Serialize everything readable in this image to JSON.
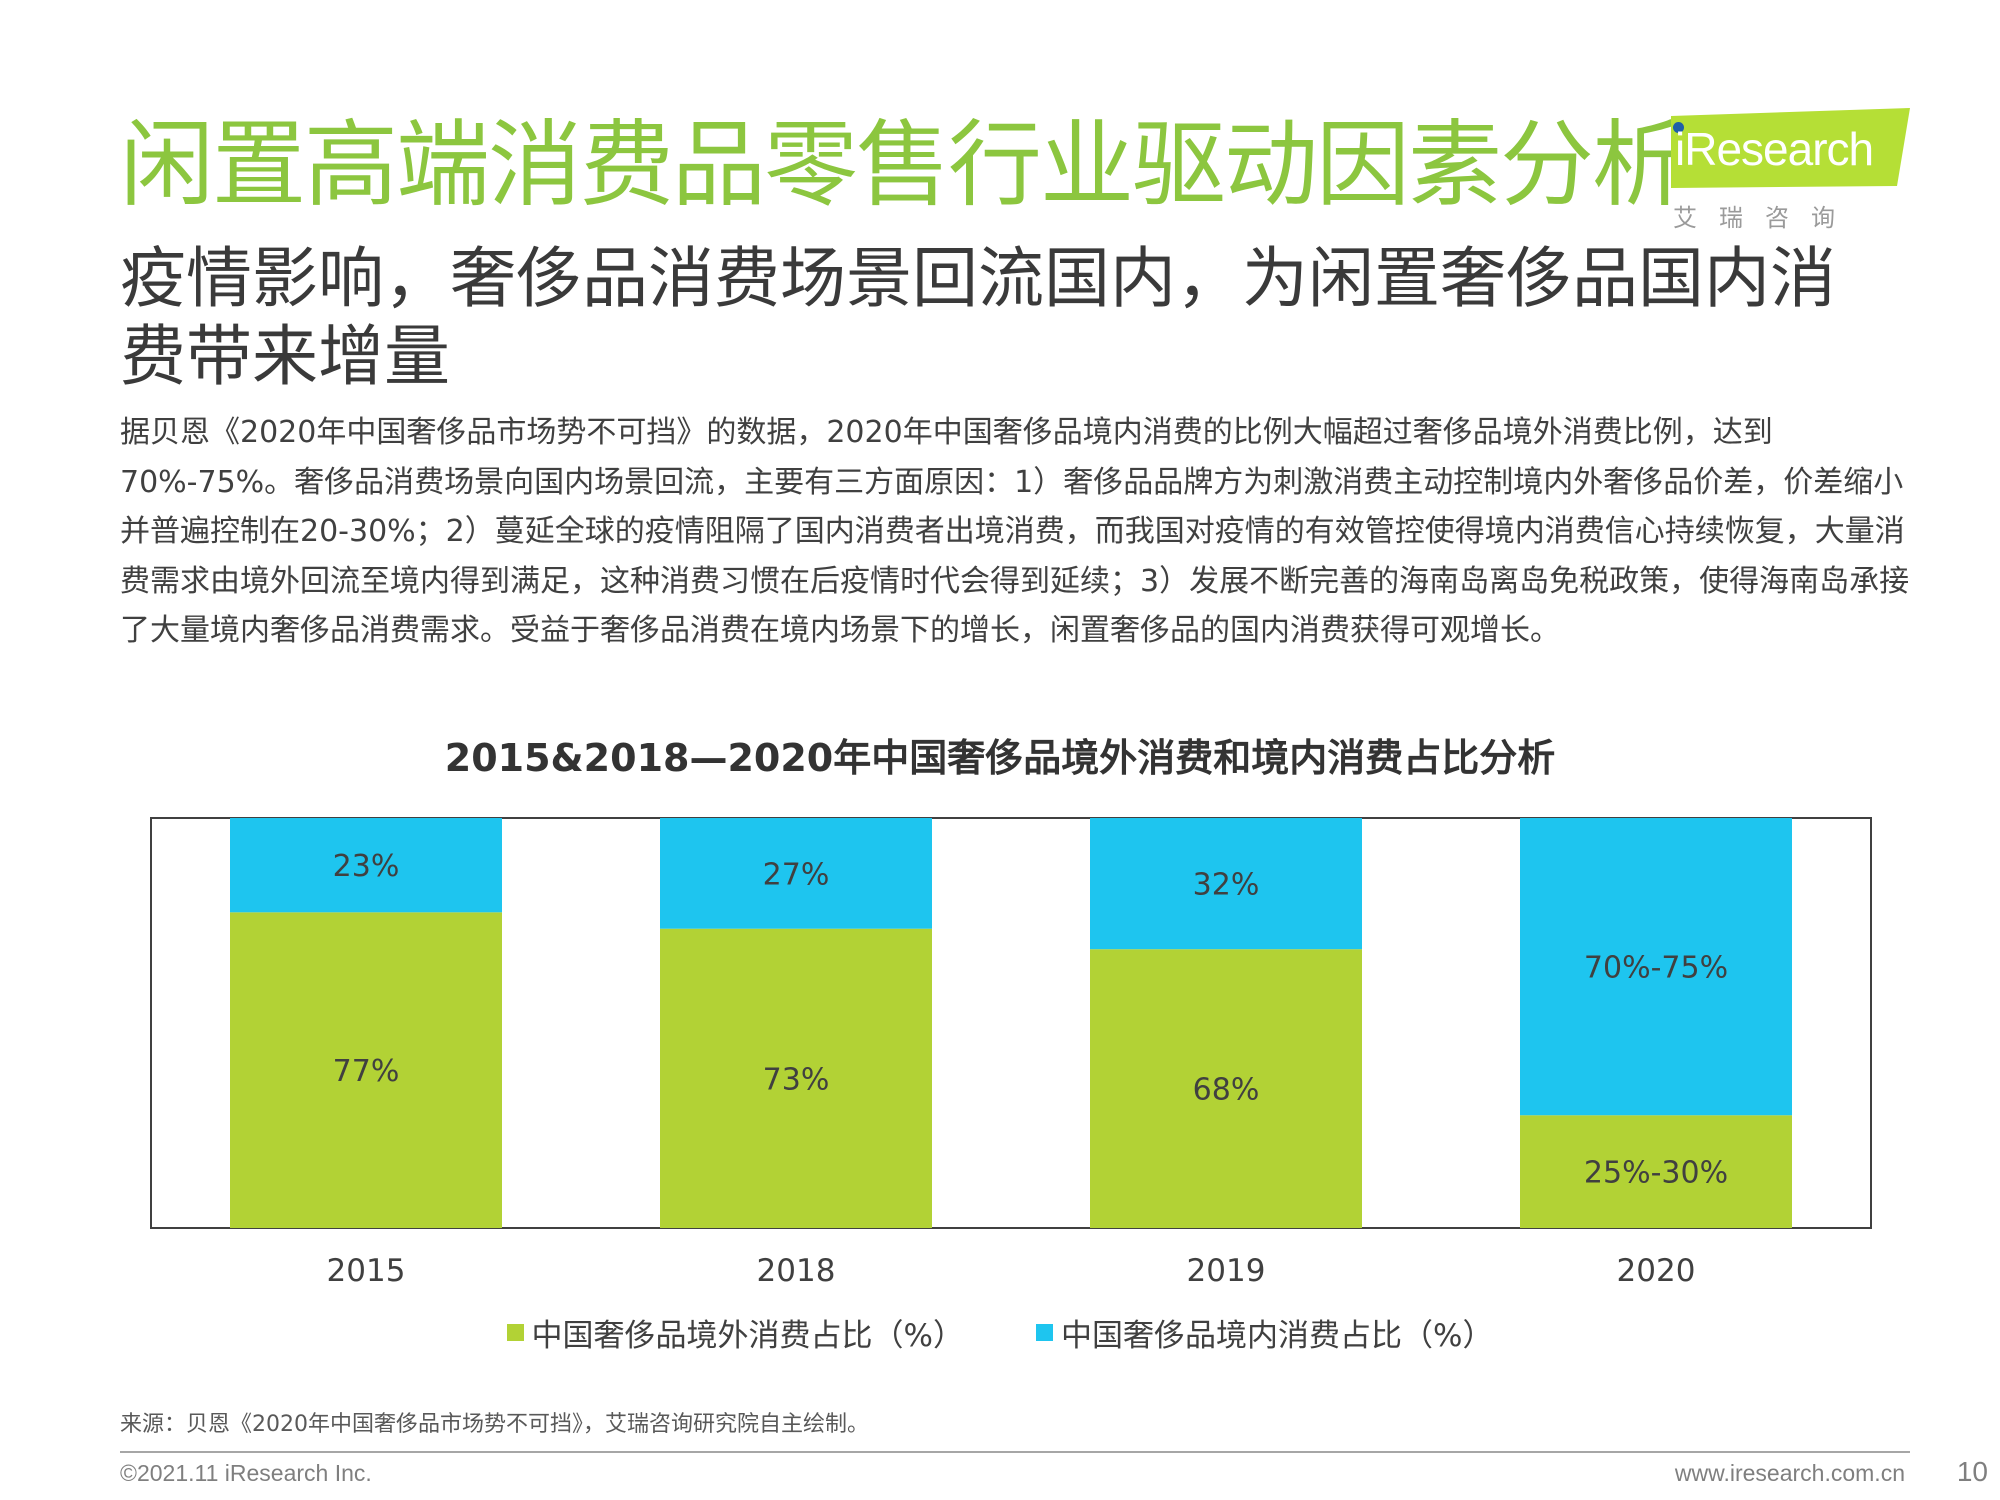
{
  "header": {
    "title": "闲置高端消费品零售行业驱动因素分析",
    "logo_text": "iResearch",
    "logo_cn": "艾瑞咨询",
    "logo_color": "#b5df36"
  },
  "subtitle": "疫情影响，奢侈品消费场景回流国内，为闲置奢侈品国内消费带来增量",
  "body": "据贝恩《2020年中国奢侈品市场势不可挡》的数据，2020年中国奢侈品境内消费的比例大幅超过奢侈品境外消费比例，达到70%-75%。奢侈品消费场景向国内场景回流，主要有三方面原因：1）奢侈品品牌方为刺激消费主动控制境内外奢侈品价差，价差缩小并普遍控制在20-30%；2）蔓延全球的疫情阻隔了国内消费者出境消费，而我国对疫情的有效管控使得境内消费信心持续恢复，大量消费需求由境外回流至境内得到满足，这种消费习惯在后疫情时代会得到延续；3）发展不断完善的海南岛离岛免税政策，使得海南岛承接了大量境内奢侈品消费需求。受益于奢侈品消费在境内场景下的增长，闲置奢侈品的国内消费获得可观增长。",
  "chart_data": {
    "type": "bar",
    "stacked": true,
    "title": "2015&2018—2020年中国奢侈品境外消费和境内消费占比分析",
    "categories": [
      "2015",
      "2018",
      "2019",
      "2020"
    ],
    "ylim": [
      0,
      100
    ],
    "series": [
      {
        "name": "中国奢侈品境外消费占比（%）",
        "values": [
          77,
          73,
          68,
          27.5
        ],
        "labels": [
          "77%",
          "73%",
          "68%",
          "25%-30%"
        ],
        "color": "#b2d235"
      },
      {
        "name": "中国奢侈品境内消费占比（%）",
        "values": [
          23,
          27,
          32,
          72.5
        ],
        "labels": [
          "23%",
          "27%",
          "32%",
          "70%-75%"
        ],
        "color": "#1ec5ef"
      }
    ],
    "legend": "bottom-center",
    "grid": false
  },
  "footer": {
    "source": "来源：贝恩《2020年中国奢侈品市场势不可挡》，艾瑞咨询研究院自主绘制。",
    "copyright": "©2021.11 iResearch Inc.",
    "website": "www.iresearch.com.cn",
    "page": "10"
  }
}
